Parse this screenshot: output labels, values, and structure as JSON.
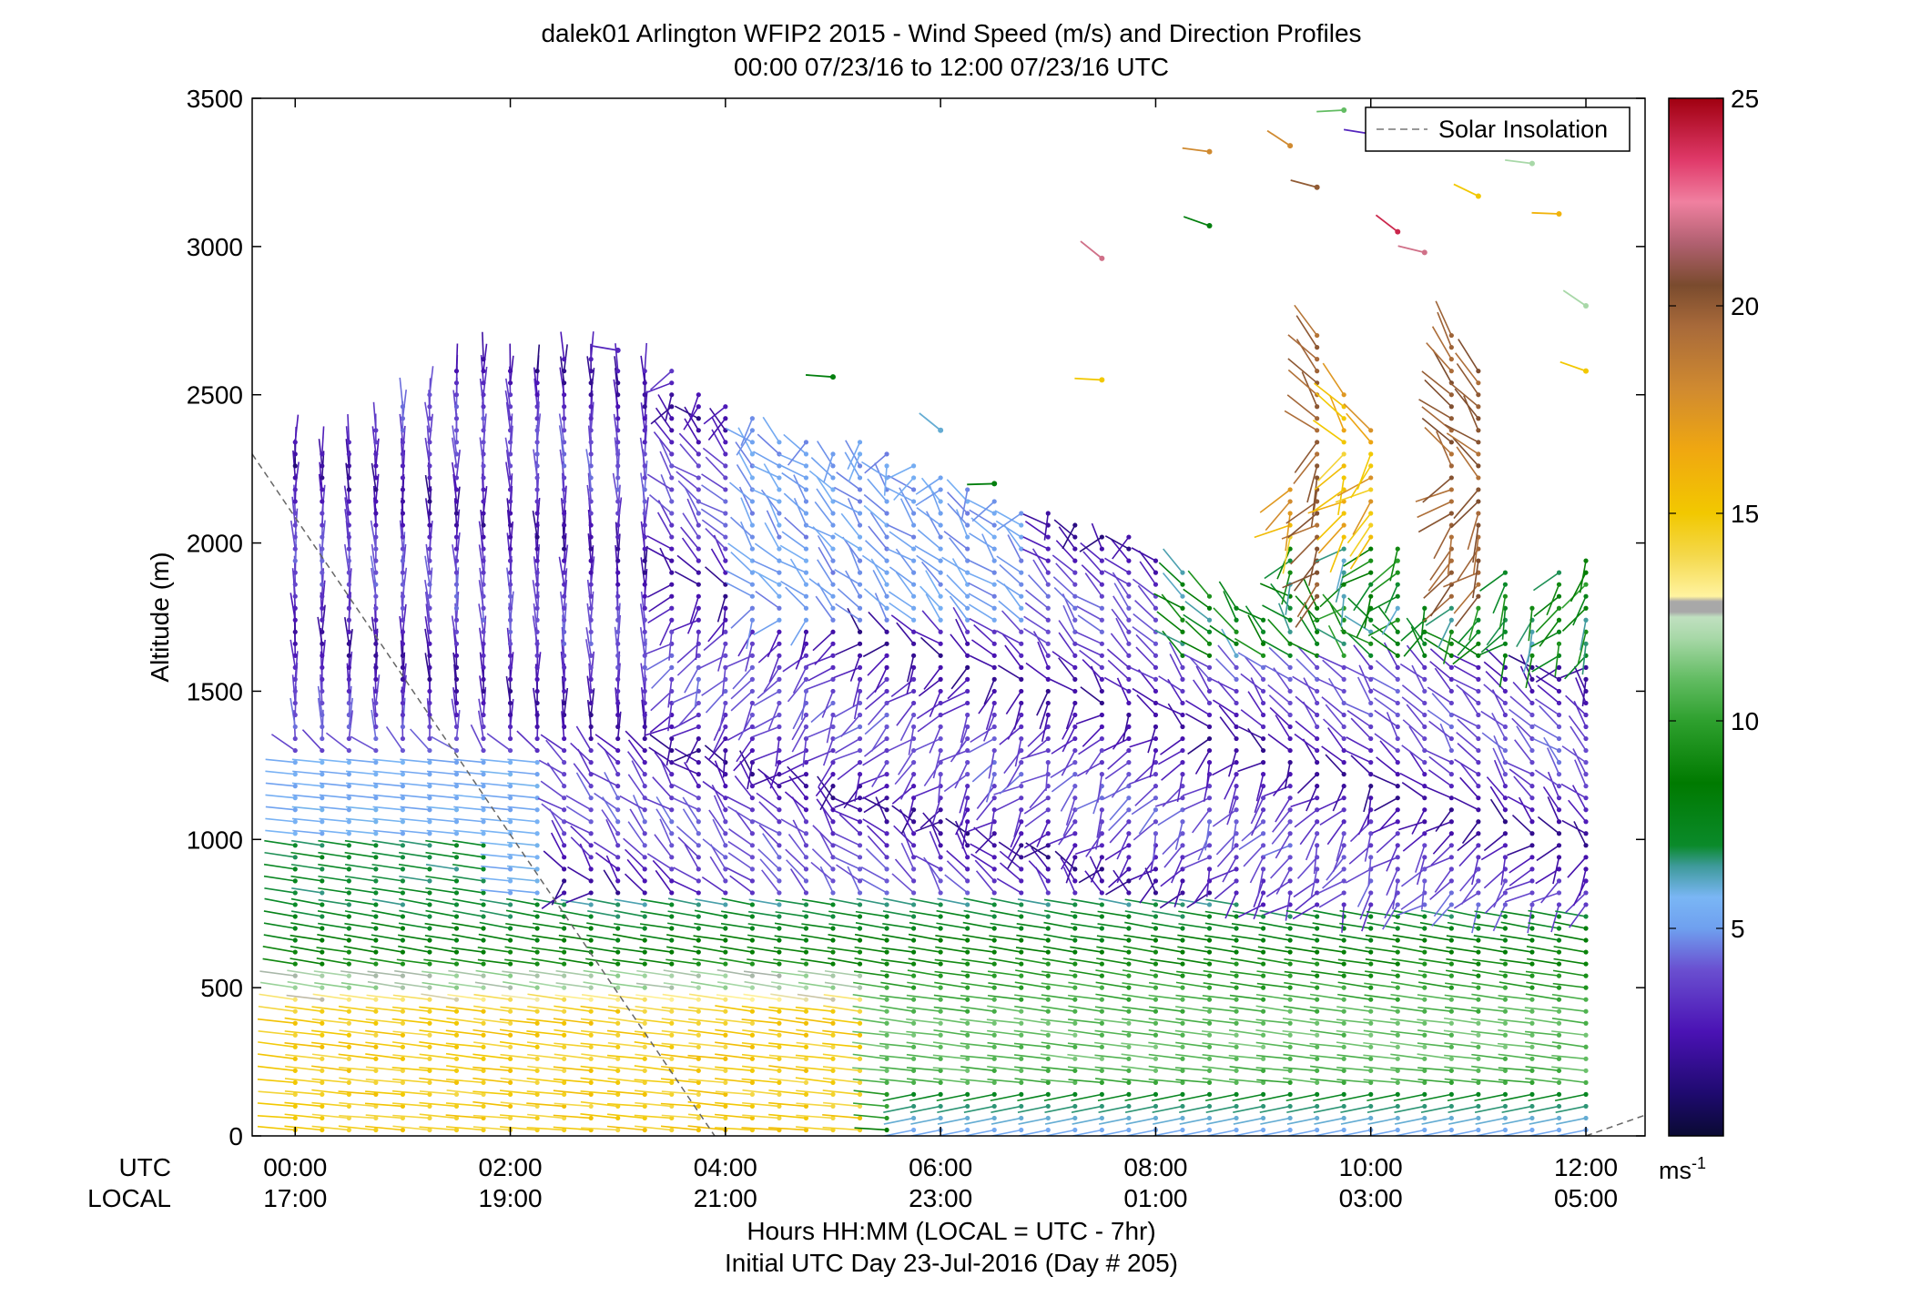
{
  "chart_data": {
    "type": "wind-barb-profile",
    "title": "dalek01 Arlington WFIP2 2015 - Wind Speed (m/s) and Direction Profiles",
    "subtitle": "00:00 07/23/16 to 12:00 07/23/16  UTC",
    "ylabel": "Altitude (m)",
    "ylim": [
      0,
      3500
    ],
    "yticks": [
      "0",
      "500",
      "1000",
      "1500",
      "2000",
      "2500",
      "3000",
      "3500"
    ],
    "xlim_hours": [
      -0.4,
      12.55
    ],
    "x_tick_hours": [
      0,
      2,
      4,
      6,
      8,
      10,
      12
    ],
    "x_utc_labels": [
      "00:00",
      "02:00",
      "04:00",
      "06:00",
      "08:00",
      "10:00",
      "12:00"
    ],
    "x_local_labels": [
      "17:00",
      "19:00",
      "21:00",
      "23:00",
      "01:00",
      "03:00",
      "05:00"
    ],
    "x_row_label_utc": "UTC",
    "x_row_label_local": "LOCAL",
    "xlabel": "Hours HH:MM  (LOCAL = UTC - 7hr)",
    "xlabel2": "Initial UTC Day 23-Jul-2016 (Day # 205)",
    "legend": {
      "label": "Solar Insolation",
      "position": "top-right"
    },
    "solar_insolation": {
      "left_branch": {
        "x_hours": [
          -0.4,
          3.9
        ],
        "y": [
          2300,
          0
        ]
      },
      "right_branch": {
        "x_hours": [
          12.0,
          12.55
        ],
        "y": [
          0,
          70
        ]
      }
    },
    "colorbar": {
      "unit_label": "ms",
      "unit_exponent": "-1",
      "ticks": [
        "5",
        "10",
        "15",
        "20",
        "25"
      ],
      "range": [
        0,
        25
      ]
    },
    "profile_interval_hours": 0.25,
    "altitude_step_m": 40,
    "profiles_description": "Each profile at 15-min interval; barbs colored by wind speed. Lower layers (<800 m) show westerly winds 8-15 m/s; middle layers (800-2500 m) light and variable winds 1-5 m/s; upper sporadic returns 10-20 m/s.",
    "profiles": [
      {
        "t": 0.0,
        "top": 2340
      },
      {
        "t": 0.25,
        "top": 2300
      },
      {
        "t": 0.5,
        "top": 2370
      },
      {
        "t": 0.75,
        "top": 2380
      },
      {
        "t": 1.0,
        "top": 2460
      },
      {
        "t": 1.25,
        "top": 2520
      },
      {
        "t": 1.5,
        "top": 2600
      },
      {
        "t": 1.75,
        "top": 2620
      },
      {
        "t": 2.0,
        "top": 2610
      },
      {
        "t": 2.25,
        "top": 2610
      },
      {
        "t": 2.5,
        "top": 2630
      },
      {
        "t": 2.75,
        "top": 2620
      },
      {
        "t": 3.0,
        "top": 2600
      },
      {
        "t": 3.25,
        "top": 2600
      },
      {
        "t": 3.5,
        "top": 2580
      },
      {
        "t": 3.75,
        "top": 2530
      },
      {
        "t": 4.0,
        "top": 2480
      },
      {
        "t": 4.25,
        "top": 2420
      },
      {
        "t": 4.5,
        "top": 2360
      },
      {
        "t": 4.75,
        "top": 2350
      },
      {
        "t": 5.0,
        "top": 2330
      },
      {
        "t": 5.25,
        "top": 2340
      },
      {
        "t": 5.5,
        "top": 2300
      },
      {
        "t": 5.75,
        "top": 2280
      },
      {
        "t": 6.0,
        "top": 2230
      },
      {
        "t": 6.25,
        "top": 2200
      },
      {
        "t": 6.5,
        "top": 2150
      },
      {
        "t": 6.75,
        "top": 2120
      },
      {
        "t": 7.0,
        "top": 2100
      },
      {
        "t": 7.25,
        "top": 2080
      },
      {
        "t": 7.5,
        "top": 2050
      },
      {
        "t": 7.75,
        "top": 2030
      },
      {
        "t": 8.0,
        "top": 1950
      },
      {
        "t": 8.25,
        "top": 1900
      },
      {
        "t": 8.5,
        "top": 1850
      },
      {
        "t": 8.75,
        "top": 1800
      },
      {
        "t": 9.0,
        "top": 1750
      },
      {
        "t": 9.25,
        "top": 2200
      },
      {
        "t": 9.5,
        "top": 2700
      },
      {
        "t": 9.75,
        "top": 2500
      },
      {
        "t": 10.0,
        "top": 2400
      },
      {
        "t": 10.25,
        "top": 2000
      },
      {
        "t": 10.5,
        "top": 1800
      },
      {
        "t": 10.75,
        "top": 2700
      },
      {
        "t": 11.0,
        "top": 2600
      },
      {
        "t": 11.25,
        "top": 1900
      },
      {
        "t": 11.5,
        "top": 1800
      },
      {
        "t": 11.75,
        "top": 1900
      },
      {
        "t": 12.0,
        "top": 1960
      }
    ],
    "sparse_upper_points": [
      {
        "t": 3.0,
        "alt": 2650,
        "speed": 3
      },
      {
        "t": 5.0,
        "alt": 2560,
        "speed": 8
      },
      {
        "t": 6.0,
        "alt": 2380,
        "speed": 6
      },
      {
        "t": 6.5,
        "alt": 2200,
        "speed": 8
      },
      {
        "t": 7.5,
        "alt": 2960,
        "speed": 22
      },
      {
        "t": 7.5,
        "alt": 2550,
        "speed": 15
      },
      {
        "t": 8.5,
        "alt": 3320,
        "speed": 18
      },
      {
        "t": 8.5,
        "alt": 3070,
        "speed": 8
      },
      {
        "t": 9.25,
        "alt": 3340,
        "speed": 18
      },
      {
        "t": 9.5,
        "alt": 3200,
        "speed": 20
      },
      {
        "t": 9.75,
        "alt": 3460,
        "speed": 11
      },
      {
        "t": 10.0,
        "alt": 3380,
        "speed": 3
      },
      {
        "t": 10.25,
        "alt": 3050,
        "speed": 24
      },
      {
        "t": 10.5,
        "alt": 2980,
        "speed": 22
      },
      {
        "t": 11.0,
        "alt": 3170,
        "speed": 15
      },
      {
        "t": 11.5,
        "alt": 3280,
        "speed": 12
      },
      {
        "t": 11.75,
        "alt": 3110,
        "speed": 16
      },
      {
        "t": 12.0,
        "alt": 2800,
        "speed": 12
      },
      {
        "t": 12.0,
        "alt": 2580,
        "speed": 15
      }
    ]
  }
}
